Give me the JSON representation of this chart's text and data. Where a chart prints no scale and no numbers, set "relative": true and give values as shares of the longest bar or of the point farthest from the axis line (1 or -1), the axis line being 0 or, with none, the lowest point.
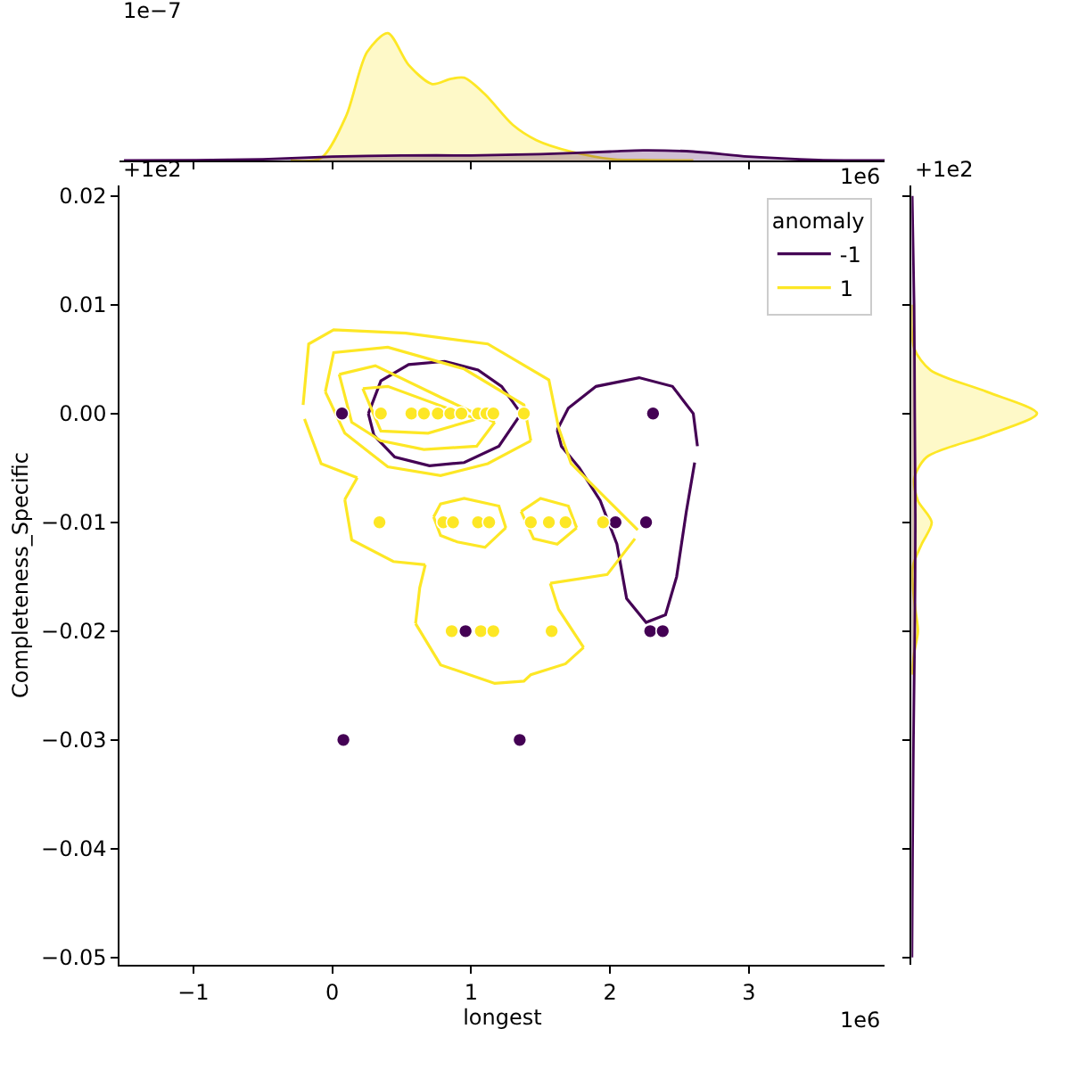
{
  "chart_data": [
    {
      "type": "area",
      "relative": true,
      "xlim": [
        -1.53,
        3.98
      ],
      "xticks": [
        {
          "value": -1,
          "label": null
        },
        {
          "value": 0,
          "label": null
        },
        {
          "value": 1,
          "label": null
        },
        {
          "value": 2,
          "label": null
        },
        {
          "value": 3,
          "label": null
        }
      ],
      "tick_labels": false,
      "annotations": [
        "1e−7",
        "1e6"
      ],
      "series": [
        {
          "color": "#fde725",
          "x": [
            -0.3,
            -0.08,
            0.1,
            0.25,
            0.4,
            0.55,
            0.72,
            0.85,
            0.95,
            1.1,
            1.3,
            1.47,
            1.72,
            2.02,
            2.3,
            2.6
          ],
          "values": [
            0,
            0.02,
            0.35,
            0.85,
            1,
            0.75,
            0.6,
            0.64,
            0.65,
            0.52,
            0.28,
            0.16,
            0.07,
            0.01,
            0.003,
            0
          ]
        },
        {
          "color": "#440154",
          "x": [
            -1.5,
            -0.98,
            -0.5,
            0,
            0.5,
            1,
            1.5,
            2,
            2.24,
            2.6,
            3,
            3.5,
            3.98
          ],
          "values": [
            0,
            0.003,
            0.01,
            0.03,
            0.04,
            0.04,
            0.05,
            0.07,
            0.08,
            0.07,
            0.03,
            0.005,
            0
          ]
        }
      ]
    },
    {
      "type": "scatter",
      "xlabel": "longest",
      "ylabel": "Completeness_Specific",
      "legend_title": "anomaly",
      "legend": "top right",
      "marker": "circle",
      "annotations": [
        "+1e2",
        "1e6"
      ],
      "xlim": [
        -1.53,
        3.98
      ],
      "ylim": [
        -0.0507,
        0.021
      ],
      "xticks": [
        {
          "value": -1,
          "label": "−1"
        },
        0,
        1,
        2,
        3
      ],
      "yticks": [
        0.02,
        0.01,
        {
          "value": 0,
          "label": "0.00"
        },
        {
          "value": -0.01,
          "label": "−0.01"
        },
        {
          "value": -0.02,
          "label": "−0.02"
        },
        {
          "value": -0.03,
          "label": "−0.03"
        },
        {
          "value": -0.04,
          "label": "−0.04"
        },
        {
          "value": -0.05,
          "label": "−0.05"
        }
      ],
      "series": [
        {
          "type": "line",
          "marker": "none",
          "name": "-1",
          "color": "#440154",
          "x": [
            0.26,
            0.35,
            0.55,
            0.81,
            1.05,
            1.22,
            1.36
          ],
          "values": [
            0,
            0.003,
            0.0045,
            0.0048,
            0.004,
            0.0025,
            0
          ]
        },
        {
          "type": "line",
          "marker": "none",
          "color": "#440154",
          "x": [
            0.26,
            0.3,
            0.45,
            0.7,
            0.95,
            1.2,
            1.36
          ],
          "values": [
            0,
            -0.002,
            -0.004,
            -0.0048,
            -0.0045,
            -0.003,
            0
          ]
        },
        {
          "type": "line",
          "marker": "none",
          "color": "#440154",
          "x": [
            1.62,
            1.7,
            1.9,
            2.21,
            2.45,
            2.6,
            2.63
          ],
          "values": [
            -0.0015,
            0.0005,
            0.0025,
            0.0033,
            0.0025,
            0,
            -0.003
          ]
        },
        {
          "type": "line",
          "marker": "none",
          "color": "#440154",
          "x": [
            1.62,
            1.65,
            1.78,
            1.93,
            2.05,
            2.12,
            2.26,
            2.4,
            2.48,
            2.55,
            2.61
          ],
          "values": [
            -0.0015,
            -0.003,
            -0.005,
            -0.008,
            -0.012,
            -0.017,
            -0.0192,
            -0.0185,
            -0.015,
            -0.009,
            -0.0045
          ]
        },
        {
          "type": "line",
          "marker": "none",
          "name": "1",
          "color": "#fde725",
          "x": [
            -0.21,
            -0.17,
            0.01,
            0.53,
            1.12,
            1.56,
            1.63,
            1.72,
            2.2
          ],
          "values": [
            0.0008,
            0.0064,
            0.0077,
            0.0074,
            0.0064,
            0.0031,
            -0.0013,
            -0.0046,
            -0.0107
          ]
        },
        {
          "type": "line",
          "marker": "none",
          "color": "#fde725",
          "x": [
            1.57,
            1.98,
            2.18
          ],
          "values": [
            -0.0156,
            -0.0148,
            -0.0115
          ]
        },
        {
          "type": "line",
          "marker": "none",
          "color": "#fde725",
          "x": [
            1.57,
            1.63,
            1.81
          ],
          "values": [
            -0.0156,
            -0.018,
            -0.0215
          ]
        },
        {
          "type": "line",
          "marker": "none",
          "color": "#fde725",
          "x": [
            0.6,
            0.78,
            1.17,
            1.38,
            1.43,
            1.68,
            1.81
          ],
          "values": [
            -0.0193,
            -0.0231,
            -0.0248,
            -0.0246,
            -0.024,
            -0.023,
            -0.0215
          ]
        },
        {
          "type": "line",
          "marker": "none",
          "color": "#fde725",
          "x": [
            0.6,
            0.63,
            0.67
          ],
          "values": [
            -0.0193,
            -0.016,
            -0.0139
          ]
        },
        {
          "type": "line",
          "marker": "none",
          "color": "#fde725",
          "x": [
            0.09,
            0.14,
            0.44,
            0.67
          ],
          "values": [
            -0.0079,
            -0.0116,
            -0.0136,
            -0.0139
          ]
        },
        {
          "type": "line",
          "marker": "none",
          "color": "#fde725",
          "x": [
            0.09,
            0.18
          ],
          "values": [
            -0.0079,
            -0.0059
          ]
        },
        {
          "type": "line",
          "marker": "none",
          "color": "#fde725",
          "x": [
            -0.2,
            -0.08,
            0.18
          ],
          "values": [
            -0.0005,
            -0.0046,
            -0.0059
          ]
        },
        {
          "type": "line",
          "marker": "none",
          "color": "#fde725",
          "x": [
            -0.05,
            0.01,
            0.4,
            0.95,
            1.38,
            1.43
          ],
          "values": [
            0.002,
            0.0056,
            0.0061,
            0.0041,
            0.0008,
            -0.0025
          ]
        },
        {
          "type": "line",
          "marker": "none",
          "color": "#fde725",
          "x": [
            -0.05,
            0.09,
            0.4,
            0.78,
            1.12,
            1.43
          ],
          "values": [
            0.002,
            -0.0018,
            -0.0049,
            -0.0057,
            -0.0046,
            -0.0025
          ]
        },
        {
          "type": "line",
          "marker": "none",
          "color": "#fde725",
          "x": [
            0.05,
            0.31,
            0.78,
            1.17
          ],
          "values": [
            0.0036,
            0.0044,
            0.0015,
            -0.0008
          ]
        },
        {
          "type": "line",
          "marker": "none",
          "color": "#fde725",
          "x": [
            0.05,
            0.14,
            0.35,
            0.66,
            1.04,
            1.17
          ],
          "values": [
            0.0036,
            -0.0008,
            -0.0025,
            -0.0033,
            -0.003,
            -0.0008
          ]
        },
        {
          "type": "line",
          "marker": "none",
          "color": "#fde725",
          "x": [
            0.22,
            0.4,
            1.04
          ],
          "values": [
            0.0023,
            0.0025,
            -0.0005
          ]
        },
        {
          "type": "line",
          "marker": "none",
          "color": "#fde725",
          "x": [
            0.22,
            0.35,
            0.69,
            1.04
          ],
          "values": [
            0.0023,
            -0.0016,
            -0.0018,
            -0.0005
          ]
        },
        {
          "type": "line",
          "marker": "none",
          "color": "#fde725",
          "x": [
            0.73,
            0.78,
            0.95,
            1.2,
            1.25
          ],
          "values": [
            -0.0095,
            -0.0083,
            -0.0078,
            -0.0085,
            -0.0105
          ]
        },
        {
          "type": "line",
          "marker": "none",
          "color": "#fde725",
          "x": [
            0.73,
            0.78,
            0.9,
            1.1,
            1.25
          ],
          "values": [
            -0.0095,
            -0.0112,
            -0.0118,
            -0.0123,
            -0.0105
          ]
        },
        {
          "type": "line",
          "marker": "none",
          "color": "#fde725",
          "x": [
            1.36,
            1.5,
            1.7,
            1.76
          ],
          "values": [
            -0.009,
            -0.0078,
            -0.0085,
            -0.0105
          ]
        },
        {
          "type": "line",
          "marker": "none",
          "color": "#fde725",
          "x": [
            1.36,
            1.45,
            1.62,
            1.76
          ],
          "values": [
            -0.009,
            -0.0115,
            -0.012,
            -0.0105
          ]
        },
        {
          "color": "#440154",
          "x": [
            0.07,
            2.31,
            2.04,
            2.26,
            0.96,
            2.29,
            2.38,
            0.08,
            1.35
          ],
          "values": [
            0,
            0,
            -0.01,
            -0.01,
            -0.02,
            -0.02,
            -0.02,
            -0.03,
            -0.03
          ]
        },
        {
          "color": "#fde725",
          "x": [
            0.35,
            0.57,
            0.66,
            0.76,
            0.85,
            0.93,
            1.05,
            1.11,
            1.16,
            1.38,
            0.34,
            0.8,
            0.87,
            1.05,
            1.13,
            1.43,
            1.56,
            1.68,
            1.95,
            0.86,
            1.07,
            1.16,
            1.58
          ],
          "values": [
            0,
            0,
            0,
            0,
            0,
            0,
            0,
            0,
            0,
            0,
            -0.01,
            -0.01,
            -0.01,
            -0.01,
            -0.01,
            -0.01,
            -0.01,
            -0.01,
            -0.01,
            -0.02,
            -0.02,
            -0.02,
            -0.02
          ]
        }
      ]
    },
    {
      "type": "area",
      "relative": true,
      "orientation": "horizontal",
      "ylim": [
        -0.0507,
        0.021
      ],
      "yticks": [
        {
          "value": 0.02,
          "label": null
        },
        {
          "value": 0.01,
          "label": null
        },
        {
          "value": 0,
          "label": null
        },
        {
          "value": -0.01,
          "label": null
        },
        {
          "value": -0.02,
          "label": null
        },
        {
          "value": -0.03,
          "label": null
        },
        {
          "value": -0.04,
          "label": null
        },
        {
          "value": -0.05,
          "label": null
        }
      ],
      "tick_labels": false,
      "annotations": [
        "+1e2"
      ],
      "series": [
        {
          "color": "#fde725",
          "x": [
            0.01,
            0.006,
            0.004,
            0.002,
            0,
            -0.002,
            -0.004,
            -0.006,
            -0.008,
            -0.01,
            -0.012,
            -0.014,
            -0.016,
            -0.018,
            -0.02,
            -0.022,
            -0.024
          ],
          "values": [
            0,
            0.02,
            0.15,
            0.6,
            1,
            0.6,
            0.12,
            0.02,
            0.05,
            0.16,
            0.08,
            0.01,
            0.01,
            0.03,
            0.05,
            0.02,
            0
          ]
        },
        {
          "color": "#440154",
          "x": [
            0.02,
            0.01,
            0,
            -0.01,
            -0.02,
            -0.03,
            -0.04,
            -0.05
          ],
          "values": [
            0.005,
            0.02,
            0.025,
            0.03,
            0.025,
            0.015,
            0.008,
            0.003
          ]
        }
      ]
    }
  ]
}
